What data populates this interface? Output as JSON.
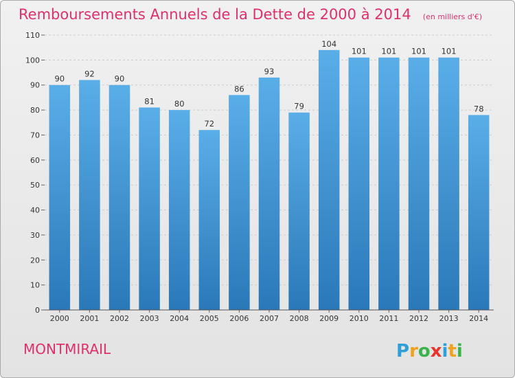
{
  "chart_data": {
    "type": "bar",
    "title": "Remboursements Annuels de la Dette de 2000 à 2014",
    "unit": "(en milliers d'€)",
    "categories": [
      "2000",
      "2001",
      "2002",
      "2003",
      "2004",
      "2005",
      "2006",
      "2007",
      "2008",
      "2009",
      "2010",
      "2011",
      "2012",
      "2013",
      "2014"
    ],
    "values": [
      90,
      92,
      90,
      81,
      80,
      72,
      86,
      93,
      79,
      104,
      101,
      101,
      101,
      101,
      78
    ],
    "yticks": [
      0,
      10,
      20,
      30,
      40,
      50,
      60,
      70,
      80,
      90,
      100,
      110
    ],
    "ylim": [
      0,
      110
    ],
    "grid": true,
    "xlabel": "",
    "ylabel": ""
  },
  "commune": "MONTMIRAIL",
  "logo": {
    "letters": [
      "P",
      "r",
      "o",
      "x",
      "i",
      "t",
      "i"
    ],
    "colors": [
      "#2f9fd9",
      "#f0a21d",
      "#3bb34a",
      "#e8332e",
      "#2f9fd9",
      "#f0a21d",
      "#3bb34a"
    ]
  },
  "colors": {
    "bar_top": "#5aaee8",
    "bar_bottom": "#2a78b8",
    "title": "#e0306a",
    "grid": "#cccccc"
  }
}
